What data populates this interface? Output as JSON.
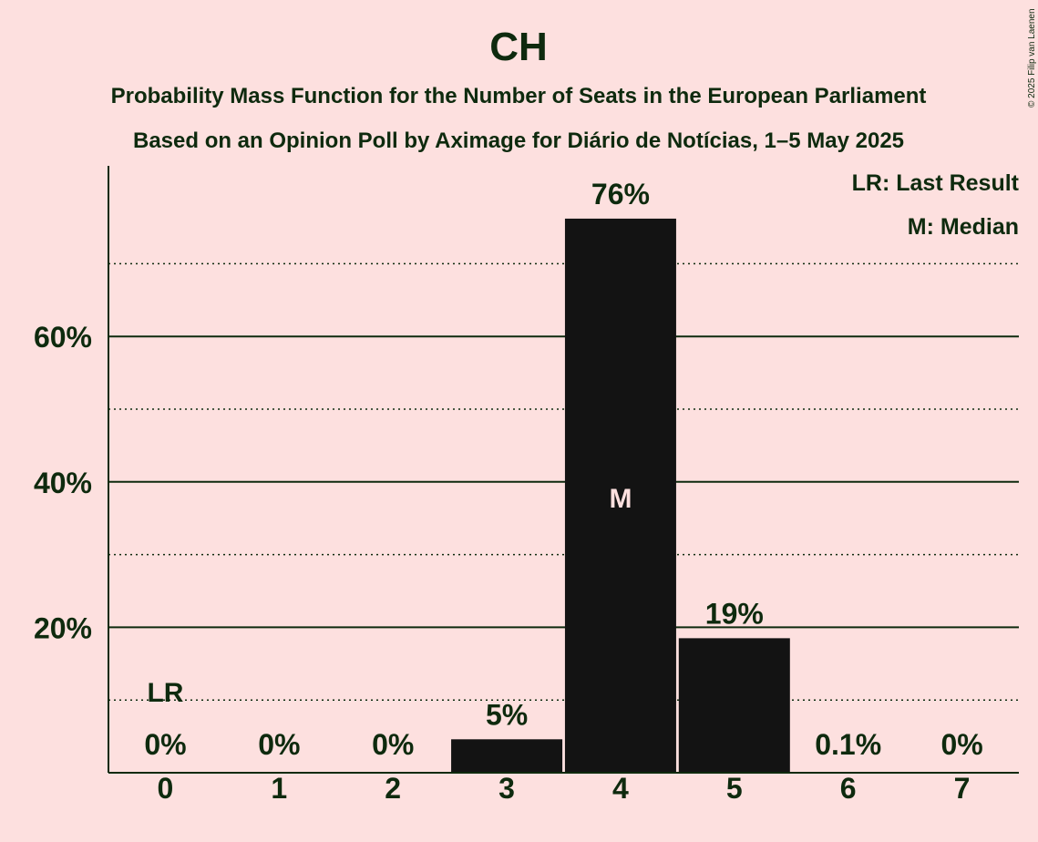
{
  "colors": {
    "background": "#fde0df",
    "bar": "#131313",
    "text": "#0e2a0e",
    "median_text": "#fde0df"
  },
  "copyright": "© 2025 Filip van Laenen",
  "legend": {
    "last_result": "LR: Last Result",
    "median": "M: Median"
  },
  "chart_data": {
    "type": "bar",
    "title": "CH",
    "subtitle": "Probability Mass Function for the Number of Seats in the European Parliament",
    "subtitle2": "Based on an Opinion Poll by Aximage for Diário de Notícias, 1–5 May 2025",
    "xlabel": "",
    "ylabel": "",
    "categories": [
      "0",
      "1",
      "2",
      "3",
      "4",
      "5",
      "6",
      "7"
    ],
    "values": [
      0,
      0,
      0,
      4.6,
      76.2,
      18.5,
      0.1,
      0
    ],
    "labels": [
      "0%",
      "0%",
      "0%",
      "5%",
      "76%",
      "19%",
      "0.1%",
      "0%"
    ],
    "ylim": [
      0,
      83
    ],
    "yticks_major": [
      20,
      40,
      60
    ],
    "ytick_labels": [
      "20%",
      "40%",
      "60%"
    ],
    "yticks_minor": [
      10,
      30,
      50,
      70
    ],
    "last_result": {
      "category": "0",
      "label": "LR"
    },
    "median": {
      "category": "4",
      "label": "M"
    }
  }
}
